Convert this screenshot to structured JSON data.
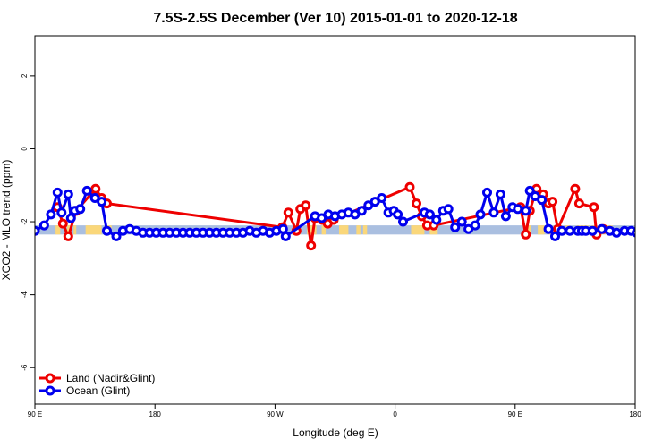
{
  "chart_data": {
    "type": "line",
    "title": "7.5S-2.5S December (Ver 10)   2015-01-01 to 2020-12-18",
    "xlabel": "Longitude (deg E)",
    "ylabel": "XCO2 - MLO trend (ppm)",
    "xlim": [
      90,
      540
    ],
    "ylim": [
      -7,
      3.1
    ],
    "x_ticks": [
      {
        "value": 90,
        "label": "90 E"
      },
      {
        "value": 180,
        "label": "180"
      },
      {
        "value": 270,
        "label": "90 W"
      },
      {
        "value": 360,
        "label": "0"
      },
      {
        "value": 450,
        "label": "90 E"
      },
      {
        "value": 540,
        "label": "180"
      }
    ],
    "y_ticks": [
      {
        "value": 2,
        "label": "2"
      },
      {
        "value": 0,
        "label": "0"
      },
      {
        "value": -2,
        "label": "-2"
      },
      {
        "value": -4,
        "label": "-4"
      },
      {
        "value": -6,
        "label": "-6"
      }
    ],
    "legend": {
      "position": "bottom-left",
      "entries": [
        {
          "label": "Land (Nadir&Glint)",
          "color": "#ee0000"
        },
        {
          "label": "Ocean (Glint)",
          "color": "#0000ee"
        }
      ]
    },
    "band": {
      "y_range": [
        -2.35,
        -2.1
      ],
      "ocean_color": "#aabfe0",
      "land_color": "#fad77a",
      "land_segments": [
        [
          105.5,
          109
        ],
        [
          114,
          117
        ],
        [
          119,
          121
        ],
        [
          128,
          140
        ],
        [
          143.5,
          147.5
        ],
        [
          285,
          289
        ],
        [
          294,
          301
        ],
        [
          305,
          308
        ],
        [
          318,
          325
        ],
        [
          331,
          334
        ],
        [
          336,
          339
        ],
        [
          372,
          382
        ],
        [
          386,
          392
        ],
        [
          457,
          462
        ],
        [
          467,
          472
        ],
        [
          475,
          478
        ],
        [
          482,
          485
        ],
        [
          488,
          491
        ],
        [
          496,
          505
        ],
        [
          507,
          511
        ],
        [
          514,
          517
        ],
        [
          519,
          523
        ]
      ]
    },
    "series": [
      {
        "name": "Land (Nadir&Glint)",
        "color": "#ee0000",
        "x": [
          107,
          111,
          115,
          121,
          135.5,
          140,
          144,
          275.5,
          280,
          286,
          289,
          293,
          297,
          300,
          305.5,
          309.5,
          314,
          371,
          376,
          380,
          384,
          389,
          454,
          458,
          461,
          466,
          471,
          475,
          478,
          482,
          495,
          498,
          509,
          511,
          516
        ],
        "y": [
          -1.6,
          -2.05,
          -2.4,
          -1.7,
          -1.1,
          -1.35,
          -1.5,
          -2.15,
          -1.75,
          -2.25,
          -1.65,
          -1.55,
          -2.65,
          -1.9,
          -1.95,
          -2.05,
          -1.95,
          -1.05,
          -1.5,
          -1.85,
          -2.1,
          -2.1,
          -1.6,
          -2.35,
          -1.7,
          -1.1,
          -1.25,
          -1.5,
          -1.45,
          -2.2,
          -1.1,
          -1.5,
          -1.6,
          -2.35,
          -2.2
        ]
      },
      {
        "name": "Ocean (Glint)",
        "color": "#0000ee",
        "x": [
          90,
          97,
          102,
          107,
          110,
          115,
          117,
          120,
          124,
          129,
          135,
          140,
          144,
          151,
          156,
          161,
          166,
          171,
          176,
          181,
          186,
          191,
          196,
          201,
          206,
          211,
          216,
          221,
          226,
          231,
          236,
          241,
          246,
          251,
          256,
          261,
          266,
          271,
          276,
          278,
          300,
          305,
          310,
          315,
          320,
          325,
          330,
          335,
          340,
          345,
          350,
          355,
          359,
          362,
          366,
          382,
          386,
          391,
          396,
          400,
          405,
          410,
          415,
          420,
          424,
          429,
          434,
          439,
          443,
          448,
          452,
          458,
          461,
          465,
          470,
          475,
          480,
          485,
          491,
          497,
          500,
          503,
          508,
          515,
          521,
          526,
          532,
          537,
          541
        ],
        "y": [
          -2.25,
          -2.1,
          -1.8,
          -1.2,
          -1.75,
          -1.25,
          -1.9,
          -1.7,
          -1.65,
          -1.15,
          -1.35,
          -1.45,
          -2.25,
          -2.4,
          -2.25,
          -2.2,
          -2.25,
          -2.3,
          -2.3,
          -2.3,
          -2.3,
          -2.3,
          -2.3,
          -2.3,
          -2.3,
          -2.3,
          -2.3,
          -2.3,
          -2.3,
          -2.3,
          -2.3,
          -2.3,
          -2.3,
          -2.25,
          -2.3,
          -2.25,
          -2.3,
          -2.25,
          -2.2,
          -2.4,
          -1.85,
          -1.9,
          -1.8,
          -1.85,
          -1.8,
          -1.75,
          -1.8,
          -1.7,
          -1.55,
          -1.45,
          -1.35,
          -1.75,
          -1.7,
          -1.8,
          -2.0,
          -1.75,
          -1.8,
          -1.95,
          -1.7,
          -1.65,
          -2.15,
          -2.0,
          -2.2,
          -2.1,
          -1.8,
          -1.2,
          -1.75,
          -1.25,
          -1.85,
          -1.6,
          -1.65,
          -1.7,
          -1.15,
          -1.3,
          -1.4,
          -2.2,
          -2.4,
          -2.25,
          -2.25,
          -2.25,
          -2.25,
          -2.25,
          -2.25,
          -2.2,
          -2.25,
          -2.3,
          -2.25,
          -2.25,
          -2.3
        ]
      }
    ]
  }
}
